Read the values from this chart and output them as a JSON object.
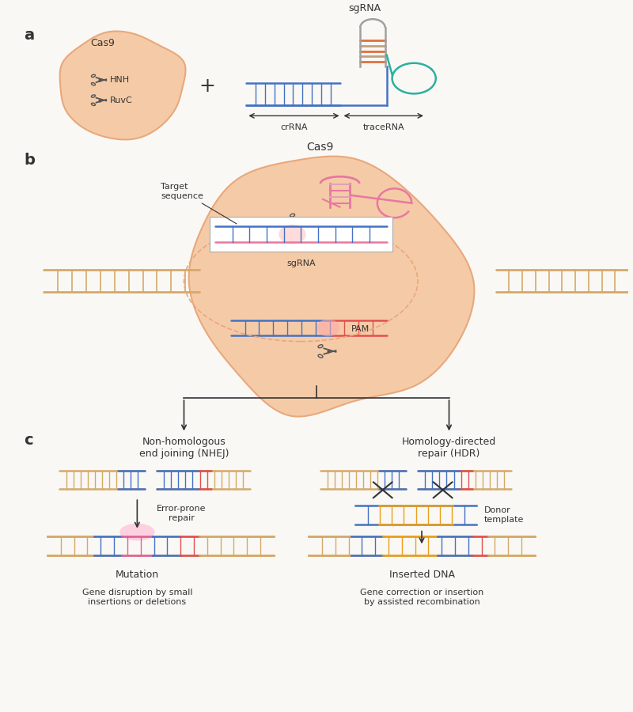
{
  "bg_color": "#faf8f4",
  "cas9_color": "#f5cba7",
  "cas9_border": "#e8a87c",
  "dna_blue": "#4472c4",
  "dna_red": "#e05050",
  "dna_tan": "#d4a96a",
  "dna_pink": "#e878a0",
  "dna_orange": "#e8a020",
  "traceRNA_color": "#2ab0a0",
  "scissors_color": "#555555",
  "text_color": "#333333",
  "panel_a_label": "a",
  "panel_b_label": "b",
  "panel_c_label": "c",
  "cas9_label": "Cas9",
  "hnh_label": "HNH",
  "ruvc_label": "RuvC",
  "sgrna_label_a": "sgRNA",
  "crrna_label": "crRNA",
  "tracerna_label": "traceRNA",
  "cas9_label_b": "Cas9",
  "target_label": "Target\nsequence",
  "sgrna_label_b": "sgRNA",
  "pam_label": "PAM",
  "nhej_title": "Non-homologous\nend joining (NHEJ)",
  "hdr_title": "Homology-directed\nrepair (HDR)",
  "error_prone_label": "Error-prone\nrepair",
  "mutation_label": "Mutation",
  "inserted_dna_label": "Inserted DNA",
  "donor_template_label": "Donor\ntemplate",
  "gene_disruption_label": "Gene disruption by small\ninsertions or deletions",
  "gene_correction_label": "Gene correction or insertion\nby assisted recombination"
}
